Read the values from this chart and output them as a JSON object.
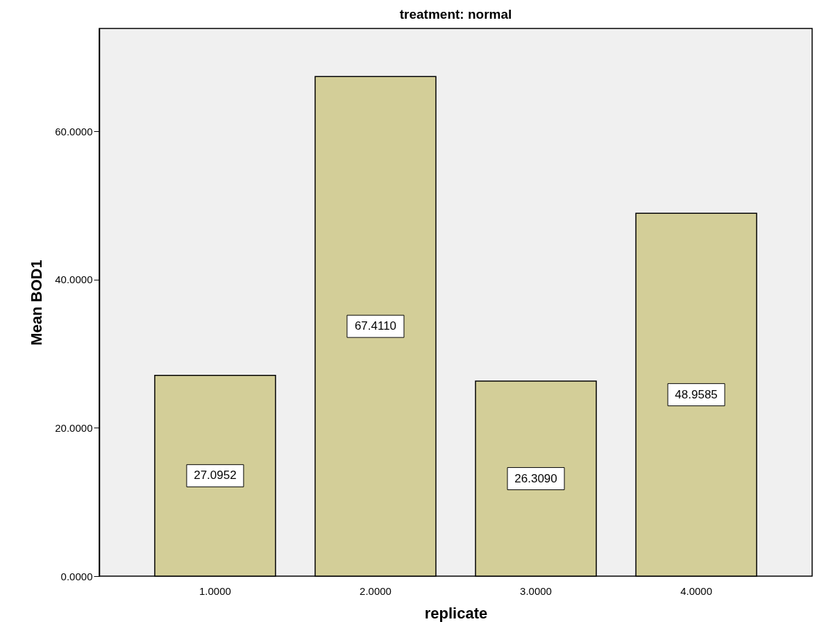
{
  "chart_data": {
    "type": "bar",
    "title": "treatment: normal",
    "xlabel": "replicate",
    "ylabel": "Mean BOD1",
    "categories": [
      "1.0000",
      "2.0000",
      "3.0000",
      "4.0000"
    ],
    "values": [
      27.0952,
      67.411,
      26.309,
      48.9585
    ],
    "value_labels": [
      "27.0952",
      "67.4110",
      "26.3090",
      "48.9585"
    ],
    "color": "#d3ce98",
    "ylim": [
      0,
      73.9
    ],
    "yticks": [
      {
        "value": 0,
        "label": "0.0000"
      },
      {
        "value": 20,
        "label": "20.0000"
      },
      {
        "value": 40,
        "label": "40.0000"
      },
      {
        "value": 60,
        "label": "60.0000"
      }
    ],
    "grid": false
  }
}
